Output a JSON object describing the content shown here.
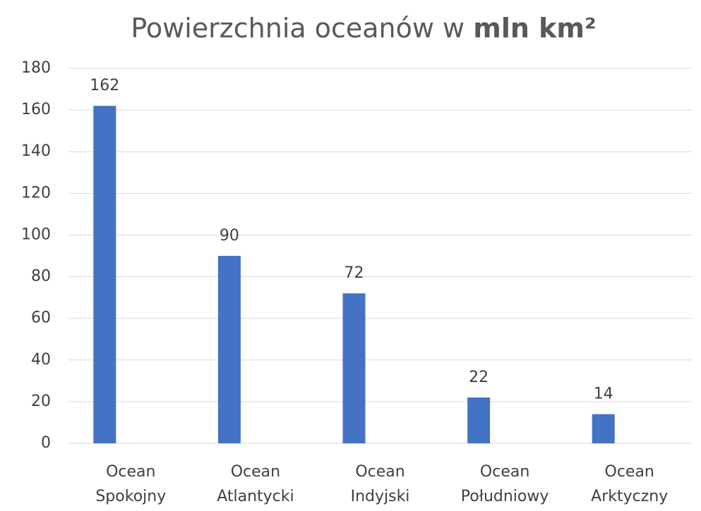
{
  "chart_data": {
    "type": "bar",
    "title": [
      "Powierzchnia oceanów w",
      "mln km²"
    ],
    "categories": [
      "Ocean Spokojny",
      "Ocean Atlantycki",
      "Ocean Indyjski",
      "Ocean Południowy",
      "Ocean Arktyczny"
    ],
    "values": [
      162,
      90,
      72,
      22,
      14
    ],
    "color": "#4472c4",
    "ylim": [
      0,
      180
    ],
    "yticks": [
      0,
      20,
      40,
      60,
      80,
      100,
      120,
      140,
      160,
      180
    ],
    "grid": true
  }
}
